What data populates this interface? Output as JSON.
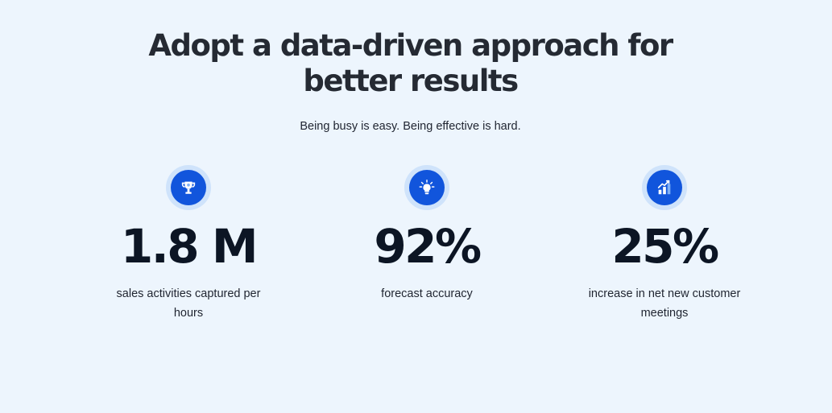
{
  "section": {
    "heading_line1": "Adopt a data-driven approach for",
    "heading_line2": "better results",
    "subtitle": "Being busy is easy. Being effective is hard."
  },
  "stats": [
    {
      "icon": "trophy-icon",
      "value": "1.8 M",
      "description": "sales activities captured per hours"
    },
    {
      "icon": "lightbulb-icon",
      "value": "92%",
      "description": "forecast accuracy"
    },
    {
      "icon": "growth-chart-icon",
      "value": "25%",
      "description": "increase in net new customer meetings"
    }
  ],
  "colors": {
    "background": "#edf5fd",
    "icon_blue": "#1155dc",
    "icon_ring": "#cfe3fb",
    "text_dark": "#0c1524"
  }
}
